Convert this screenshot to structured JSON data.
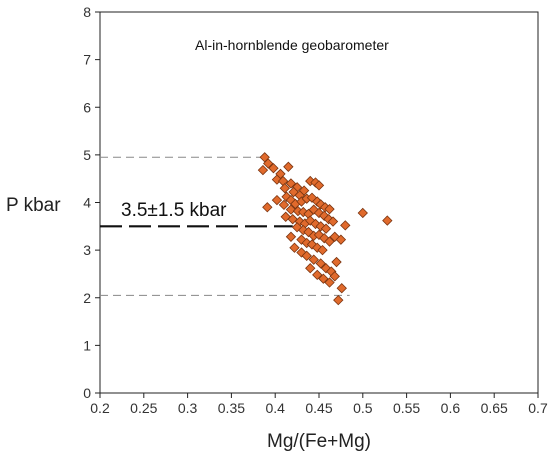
{
  "chart_data": {
    "type": "scatter",
    "title": "Al-in-hornblende geobarometer",
    "xlabel": "Mg/(Fe+Mg)",
    "ylabel": "P kbar",
    "xlim": [
      0.2,
      0.7
    ],
    "ylim": [
      0,
      8
    ],
    "xticks": [
      "0.2",
      "0.25",
      "0.3",
      "0.35",
      "0.4",
      "0.45",
      "0.5",
      "0.55",
      "0.6",
      "0.65",
      "0.7"
    ],
    "yticks": [
      "0",
      "1",
      "2",
      "3",
      "4",
      "5",
      "6",
      "7",
      "8"
    ],
    "grid": false,
    "legend": "none",
    "marker_color": "#e06a2c",
    "marker_edge_color": "#7a3410",
    "reference_lines": [
      {
        "y": 4.95,
        "x_range": [
          0.2,
          0.385
        ],
        "style": "dashed-gray"
      },
      {
        "y": 3.5,
        "x_range": [
          0.2,
          0.42
        ],
        "style": "dashed-black"
      },
      {
        "y": 2.05,
        "x_range": [
          0.2,
          0.485
        ],
        "style": "dashed-gray"
      }
    ],
    "annotation": {
      "text": "3.5±1.5 kbar",
      "x": 0.224,
      "y": 3.72
    },
    "points": [
      {
        "x": 0.388,
        "y": 4.95
      },
      {
        "x": 0.392,
        "y": 4.82
      },
      {
        "x": 0.386,
        "y": 4.68
      },
      {
        "x": 0.398,
        "y": 4.72
      },
      {
        "x": 0.406,
        "y": 4.6
      },
      {
        "x": 0.415,
        "y": 4.75
      },
      {
        "x": 0.402,
        "y": 4.48
      },
      {
        "x": 0.409,
        "y": 4.45
      },
      {
        "x": 0.418,
        "y": 4.4
      },
      {
        "x": 0.425,
        "y": 4.32
      },
      {
        "x": 0.411,
        "y": 4.3
      },
      {
        "x": 0.421,
        "y": 4.22
      },
      {
        "x": 0.428,
        "y": 4.15
      },
      {
        "x": 0.433,
        "y": 4.25
      },
      {
        "x": 0.44,
        "y": 4.45
      },
      {
        "x": 0.446,
        "y": 4.42
      },
      {
        "x": 0.45,
        "y": 4.36
      },
      {
        "x": 0.413,
        "y": 4.12
      },
      {
        "x": 0.418,
        "y": 4.05
      },
      {
        "x": 0.423,
        "y": 3.97
      },
      {
        "x": 0.43,
        "y": 4.02
      },
      {
        "x": 0.436,
        "y": 4.08
      },
      {
        "x": 0.442,
        "y": 4.1
      },
      {
        "x": 0.448,
        "y": 4.02
      },
      {
        "x": 0.452,
        "y": 3.96
      },
      {
        "x": 0.457,
        "y": 3.9
      },
      {
        "x": 0.462,
        "y": 3.86
      },
      {
        "x": 0.402,
        "y": 4.05
      },
      {
        "x": 0.41,
        "y": 3.95
      },
      {
        "x": 0.391,
        "y": 3.9
      },
      {
        "x": 0.418,
        "y": 3.85
      },
      {
        "x": 0.426,
        "y": 3.82
      },
      {
        "x": 0.432,
        "y": 3.8
      },
      {
        "x": 0.438,
        "y": 3.76
      },
      {
        "x": 0.444,
        "y": 3.85
      },
      {
        "x": 0.45,
        "y": 3.78
      },
      {
        "x": 0.456,
        "y": 3.72
      },
      {
        "x": 0.461,
        "y": 3.65
      },
      {
        "x": 0.466,
        "y": 3.6
      },
      {
        "x": 0.412,
        "y": 3.7
      },
      {
        "x": 0.42,
        "y": 3.65
      },
      {
        "x": 0.428,
        "y": 3.6
      },
      {
        "x": 0.434,
        "y": 3.56
      },
      {
        "x": 0.44,
        "y": 3.62
      },
      {
        "x": 0.446,
        "y": 3.55
      },
      {
        "x": 0.452,
        "y": 3.5
      },
      {
        "x": 0.458,
        "y": 3.45
      },
      {
        "x": 0.425,
        "y": 3.48
      },
      {
        "x": 0.432,
        "y": 3.42
      },
      {
        "x": 0.438,
        "y": 3.38
      },
      {
        "x": 0.444,
        "y": 3.3
      },
      {
        "x": 0.45,
        "y": 3.32
      },
      {
        "x": 0.456,
        "y": 3.25
      },
      {
        "x": 0.418,
        "y": 3.28
      },
      {
        "x": 0.43,
        "y": 3.22
      },
      {
        "x": 0.436,
        "y": 3.15
      },
      {
        "x": 0.442,
        "y": 3.12
      },
      {
        "x": 0.448,
        "y": 3.05
      },
      {
        "x": 0.454,
        "y": 3.0
      },
      {
        "x": 0.462,
        "y": 3.18
      },
      {
        "x": 0.468,
        "y": 3.28
      },
      {
        "x": 0.475,
        "y": 3.22
      },
      {
        "x": 0.48,
        "y": 3.52
      },
      {
        "x": 0.5,
        "y": 3.78
      },
      {
        "x": 0.528,
        "y": 3.62
      },
      {
        "x": 0.422,
        "y": 3.05
      },
      {
        "x": 0.43,
        "y": 2.95
      },
      {
        "x": 0.436,
        "y": 2.88
      },
      {
        "x": 0.444,
        "y": 2.8
      },
      {
        "x": 0.452,
        "y": 2.72
      },
      {
        "x": 0.458,
        "y": 2.62
      },
      {
        "x": 0.464,
        "y": 2.55
      },
      {
        "x": 0.44,
        "y": 2.62
      },
      {
        "x": 0.448,
        "y": 2.48
      },
      {
        "x": 0.455,
        "y": 2.4
      },
      {
        "x": 0.462,
        "y": 2.32
      },
      {
        "x": 0.468,
        "y": 2.45
      },
      {
        "x": 0.476,
        "y": 2.2
      },
      {
        "x": 0.472,
        "y": 1.95
      },
      {
        "x": 0.47,
        "y": 2.75
      }
    ]
  }
}
